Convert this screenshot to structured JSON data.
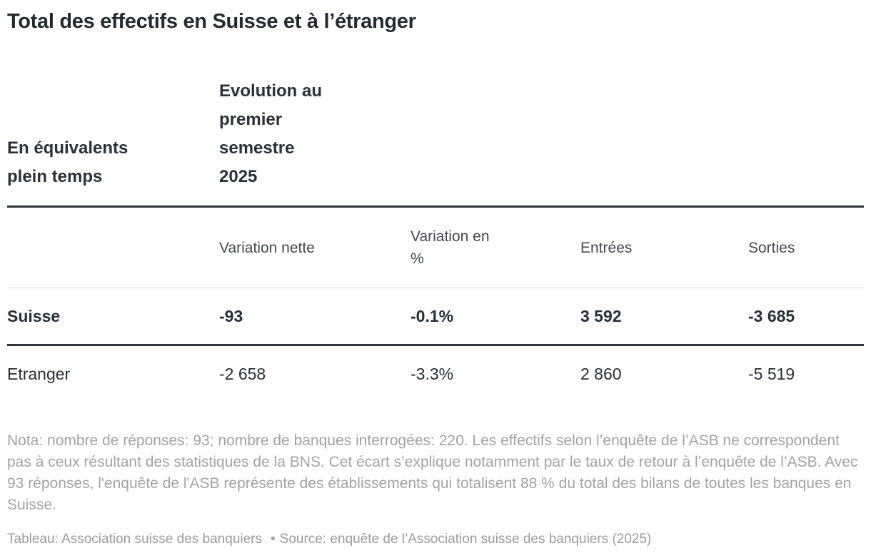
{
  "title": "Total des effectifs en Suisse et à l’étranger",
  "table": {
    "corner_header": "En équivalents\nplein temps",
    "group_header": "Evolution au\npremier\nsemestre\n2025",
    "columns": [
      "Variation nette",
      "Variation en\n%",
      "Entrées",
      "Sorties"
    ],
    "rows": [
      {
        "label": "Suisse",
        "values": [
          "-93",
          "-0.1%",
          "3 592",
          "-3 685"
        ]
      },
      {
        "label": "Etranger",
        "values": [
          "-2 658",
          "-3.3%",
          "2 860",
          "-5 519"
        ]
      }
    ]
  },
  "note": "Nota: nombre de réponses: 93; nombre de banques interrogées: 220. Les effectifs selon l’enquête de l’ASB ne correspondent pas à ceux résultant des statistiques de la BNS. Cet écart s’explique notamment par le taux de retour à l’enquête de l’ASB. Avec 93 réponses, l'enquête de l'ASB représente des établissements qui totalisent 88 % du total des bilans de toutes les banques en Suisse.",
  "footer": {
    "tableau": "Tableau: Association suisse des banquiers",
    "separator": "•",
    "source": "Source: enquête de l’Association suisse des banquiers (2025)"
  },
  "colors": {
    "text_dark": "#272f36",
    "text_subheader": "#434a50",
    "text_muted": "#a3a3a3",
    "rule_dark": "#30363b",
    "rule_light": "#dcdcdc",
    "background": "#ffffff"
  },
  "chart_data": {
    "type": "table",
    "title": "Total des effectifs en Suisse et à l’étranger",
    "row_header_label": "En équivalents plein temps",
    "group_header": "Evolution au premier semestre 2025",
    "columns": [
      "Variation nette",
      "Variation en %",
      "Entrées",
      "Sorties"
    ],
    "rows": [
      {
        "label": "Suisse",
        "variation_nette": -93,
        "variation_pct": -0.1,
        "entrees": 3592,
        "sorties": -3685
      },
      {
        "label": "Etranger",
        "variation_nette": -2658,
        "variation_pct": -3.3,
        "entrees": 2860,
        "sorties": -5519
      }
    ],
    "note": "Nota: nombre de réponses: 93; nombre de banques interrogées: 220. Les effectifs selon l’enquête de l’ASB ne correspondent pas à ceux résultant des statistiques de la BNS. Cet écart s’explique notamment par le taux de retour à l’enquête de l’ASB. Avec 93 réponses, l'enquête de l'ASB représente des établissements qui totalisent 88 % du total des bilans de toutes les banques en Suisse.",
    "source": "enquête de l’Association suisse des banquiers (2025)"
  }
}
